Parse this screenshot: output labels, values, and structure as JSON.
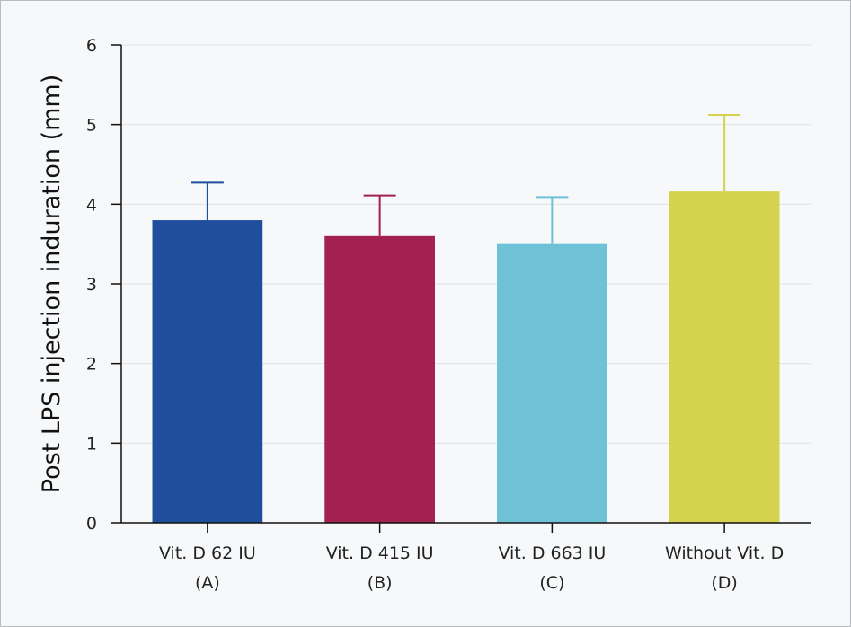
{
  "chart_data": {
    "type": "bar",
    "title": "",
    "xlabel": "",
    "ylabel": "Post LPS injection induration (mm)",
    "ylim": [
      0,
      6
    ],
    "yticks": [
      0,
      1,
      2,
      3,
      4,
      5,
      6
    ],
    "grid": true,
    "categories": [
      {
        "line1": "Vit. D 62 IU",
        "line2": "(A)"
      },
      {
        "line1": "Vit. D 415 IU",
        "line2": "(B)"
      },
      {
        "line1": "Vit. D 663 IU",
        "line2": "(C)"
      },
      {
        "line1": "Without Vit. D",
        "line2": "(D)"
      }
    ],
    "values": [
      3.8,
      3.6,
      3.5,
      4.16
    ],
    "errors": [
      0.47,
      0.51,
      0.59,
      0.96
    ],
    "colors": [
      "#1f4e9c",
      "#a3214f",
      "#6fc1d8",
      "#d4d24e"
    ]
  }
}
